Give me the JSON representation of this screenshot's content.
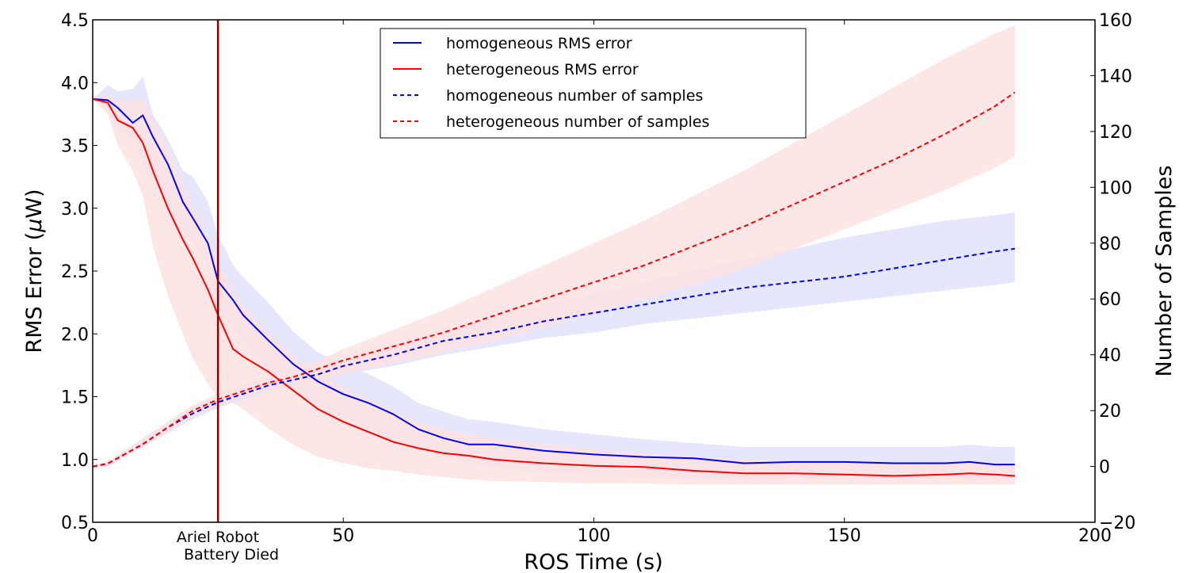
{
  "chart_data": {
    "type": "line",
    "title": "",
    "xlabel": "ROS Time (s)",
    "ylabel_left": "RMS Error (μW)",
    "ylabel_left_prefix": "RMS Error (",
    "ylabel_left_mu": "μ",
    "ylabel_left_suffix": "W)",
    "ylabel_right": "Number of Samples",
    "xlim": [
      0,
      200
    ],
    "ylim_left": [
      0.5,
      4.5
    ],
    "ylim_right": [
      -20,
      160
    ],
    "x_ticks": [
      "0",
      "50",
      "100",
      "150",
      "200"
    ],
    "x_tick_values": [
      0,
      50,
      100,
      150,
      200
    ],
    "y_left_ticks": [
      "0.5",
      "1.0",
      "1.5",
      "2.0",
      "2.5",
      "3.0",
      "3.5",
      "4.0",
      "4.5"
    ],
    "y_left_tick_values": [
      0.5,
      1.0,
      1.5,
      2.0,
      2.5,
      3.0,
      3.5,
      4.0,
      4.5
    ],
    "y_right_ticks": [
      "−20",
      "0",
      "20",
      "40",
      "60",
      "80",
      "100",
      "120",
      "140",
      "160"
    ],
    "y_right_tick_values": [
      -20,
      0,
      20,
      40,
      60,
      80,
      100,
      120,
      140,
      160
    ],
    "grid": false,
    "legend_position": "upper-center",
    "annotation": {
      "x": 25,
      "line1": "Ariel Robot",
      "line2": "Battery Died",
      "color": "#8b0000"
    },
    "series": [
      {
        "name": "homogeneous RMS error",
        "axis": "left",
        "style": "solid",
        "color": "#0000ff",
        "band_color": "#e2e2fb",
        "x": [
          0,
          3,
          5,
          8,
          10,
          12,
          15,
          18,
          20,
          23,
          25,
          28,
          30,
          35,
          40,
          45,
          50,
          55,
          60,
          65,
          70,
          75,
          80,
          90,
          100,
          110,
          120,
          130,
          140,
          150,
          160,
          170,
          175,
          180,
          184
        ],
        "values": [
          3.87,
          3.86,
          3.8,
          3.68,
          3.74,
          3.57,
          3.35,
          3.05,
          2.92,
          2.72,
          2.42,
          2.27,
          2.15,
          1.95,
          1.76,
          1.62,
          1.52,
          1.45,
          1.36,
          1.24,
          1.17,
          1.12,
          1.12,
          1.07,
          1.04,
          1.02,
          1.01,
          0.97,
          0.98,
          0.98,
          0.97,
          0.97,
          0.98,
          0.96,
          0.96
        ],
        "lower": [
          3.87,
          3.8,
          3.62,
          3.55,
          3.4,
          3.2,
          3.0,
          2.85,
          2.72,
          2.55,
          2.2,
          2.05,
          1.93,
          1.72,
          1.55,
          1.42,
          1.33,
          1.25,
          1.16,
          1.08,
          1.01,
          0.97,
          0.94,
          0.9,
          0.88,
          0.86,
          0.85,
          0.84,
          0.85,
          0.85,
          0.85,
          0.85,
          0.84,
          0.84,
          0.84
        ],
        "upper": [
          3.87,
          3.98,
          3.93,
          3.95,
          4.05,
          3.75,
          3.55,
          3.3,
          3.25,
          3.05,
          2.78,
          2.55,
          2.45,
          2.25,
          2.02,
          1.85,
          1.76,
          1.68,
          1.58,
          1.45,
          1.38,
          1.32,
          1.3,
          1.24,
          1.2,
          1.16,
          1.13,
          1.1,
          1.1,
          1.1,
          1.1,
          1.1,
          1.12,
          1.1,
          1.1
        ]
      },
      {
        "name": "heterogeneous RMS error",
        "axis": "left",
        "style": "solid",
        "color": "#ff0000",
        "band_color": "#fce2e2",
        "x": [
          0,
          3,
          5,
          8,
          10,
          12,
          15,
          18,
          20,
          23,
          25,
          28,
          30,
          35,
          40,
          45,
          50,
          55,
          60,
          65,
          70,
          75,
          80,
          90,
          100,
          110,
          120,
          130,
          140,
          150,
          160,
          170,
          175,
          180,
          184
        ],
        "values": [
          3.87,
          3.84,
          3.7,
          3.64,
          3.52,
          3.3,
          3.0,
          2.75,
          2.6,
          2.35,
          2.15,
          1.88,
          1.82,
          1.7,
          1.55,
          1.4,
          1.3,
          1.22,
          1.14,
          1.09,
          1.05,
          1.03,
          1.0,
          0.97,
          0.95,
          0.94,
          0.91,
          0.89,
          0.89,
          0.88,
          0.87,
          0.88,
          0.89,
          0.88,
          0.87
        ],
        "lower": [
          3.87,
          3.75,
          3.5,
          3.3,
          3.1,
          2.7,
          2.3,
          2.0,
          1.8,
          1.6,
          1.5,
          1.45,
          1.4,
          1.25,
          1.12,
          1.02,
          0.97,
          0.93,
          0.91,
          0.88,
          0.86,
          0.84,
          0.83,
          0.82,
          0.81,
          0.81,
          0.8,
          0.8,
          0.8,
          0.8,
          0.8,
          0.8,
          0.8,
          0.8,
          0.8
        ],
        "upper": [
          3.87,
          3.9,
          3.85,
          3.85,
          3.88,
          3.7,
          3.48,
          3.2,
          3.0,
          2.75,
          2.55,
          2.35,
          2.22,
          2.0,
          1.82,
          1.68,
          1.58,
          1.48,
          1.38,
          1.3,
          1.24,
          1.2,
          1.17,
          1.12,
          1.08,
          1.05,
          1.02,
          1.0,
          0.99,
          0.98,
          0.97,
          0.98,
          0.98,
          0.97,
          0.97
        ]
      },
      {
        "name": "homogeneous number of samples",
        "axis": "right",
        "style": "dashed",
        "color": "#0000ff",
        "band_color": "#e2e2fb",
        "x": [
          0,
          3,
          5,
          10,
          15,
          20,
          25,
          30,
          35,
          40,
          45,
          50,
          60,
          70,
          80,
          90,
          100,
          110,
          120,
          130,
          140,
          150,
          160,
          170,
          180,
          184
        ],
        "values": [
          0,
          1,
          3,
          8,
          14,
          19,
          23,
          26,
          29,
          31,
          33,
          36,
          40,
          45,
          48,
          52,
          55,
          58,
          61,
          64,
          66,
          68,
          71,
          74,
          77,
          78
        ],
        "lower": [
          0,
          0,
          2,
          7,
          12,
          17,
          21,
          24,
          27,
          29,
          31,
          33,
          36,
          40,
          43,
          46,
          48,
          51,
          53,
          55,
          57,
          59,
          61,
          63,
          65,
          66
        ],
        "upper": [
          0,
          2,
          4,
          10,
          16,
          21,
          25,
          28,
          31,
          34,
          36,
          39,
          44,
          49,
          54,
          58,
          62,
          66,
          70,
          74,
          78,
          82,
          85,
          88,
          90,
          91
        ]
      },
      {
        "name": "heterogeneous number of samples",
        "axis": "right",
        "style": "dashed",
        "color": "#ff0000",
        "band_color": "#fce2e2",
        "x": [
          0,
          3,
          5,
          10,
          15,
          20,
          25,
          30,
          35,
          40,
          45,
          50,
          60,
          70,
          80,
          90,
          100,
          110,
          120,
          130,
          140,
          150,
          160,
          170,
          180,
          184
        ],
        "values": [
          0,
          1,
          3,
          8,
          14,
          20,
          24,
          27,
          30,
          32,
          35,
          38,
          43,
          48,
          54,
          60,
          66,
          72,
          79,
          86,
          94,
          102,
          110,
          119,
          129,
          134
        ],
        "lower": [
          0,
          0,
          2,
          7,
          12,
          18,
          22,
          25,
          27,
          29,
          31,
          33,
          37,
          41,
          45,
          50,
          55,
          60,
          65,
          71,
          78,
          85,
          92,
          99,
          107,
          111
        ],
        "upper": [
          0,
          2,
          4,
          10,
          16,
          22,
          26,
          29,
          32,
          35,
          38,
          42,
          49,
          56,
          64,
          72,
          80,
          88,
          97,
          106,
          116,
          126,
          136,
          146,
          155,
          158
        ]
      }
    ]
  }
}
